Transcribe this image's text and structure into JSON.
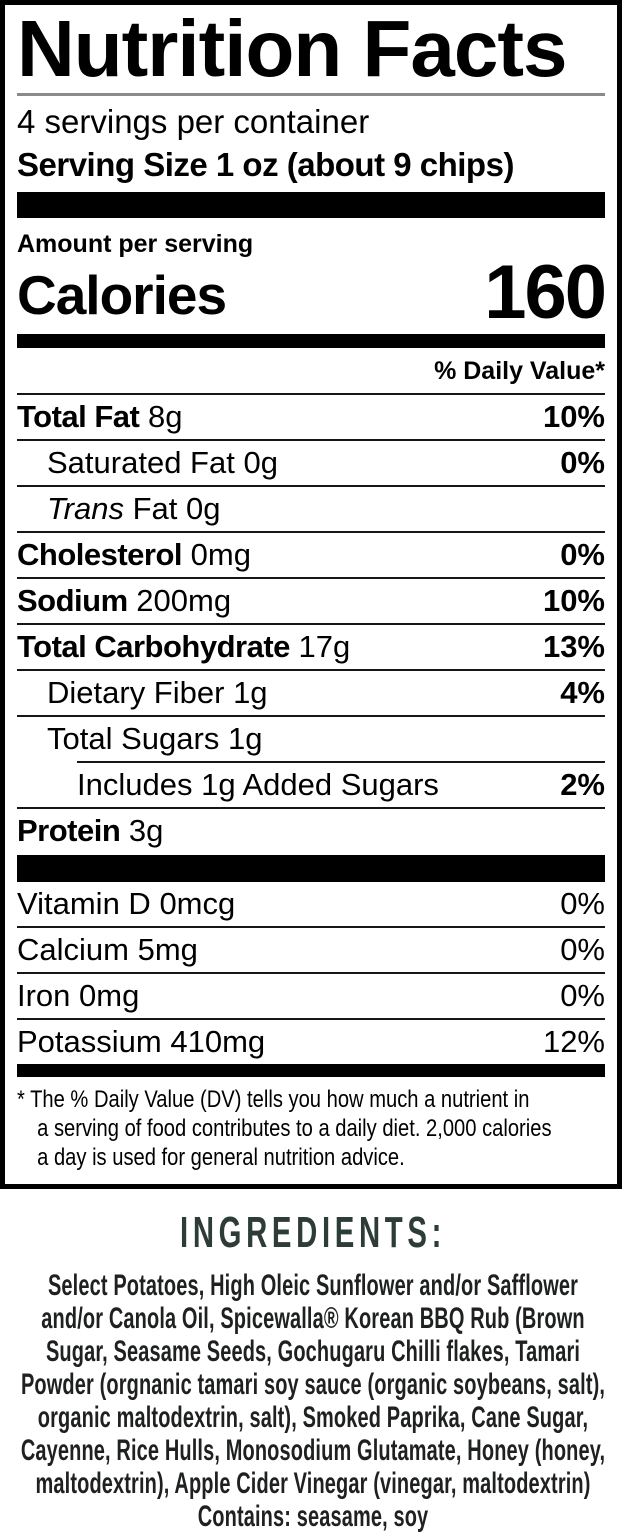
{
  "colors": {
    "label_text": "#000000",
    "bar_fill": "#000000",
    "title_rule_gray": "#8a8a8a",
    "ingredients_heading": "#2e3c38",
    "ingredients_text": "#1f2120"
  },
  "nutrition_label": {
    "title": "Nutrition Facts",
    "servings_per_container": "4 servings per container",
    "serving_size": "Serving Size 1 oz (about 9 chips)",
    "amount_per_serving": "Amount per serving",
    "calories": {
      "label": "Calories",
      "value": "160"
    },
    "daily_value_header": "% Daily Value*",
    "nutrients": [
      {
        "name": "Total Fat",
        "amount": "8g",
        "dv": "10%"
      },
      {
        "name": "Saturated Fat",
        "amount": "0g",
        "dv": "0%"
      },
      {
        "name_italic": "Trans",
        "name_rest": "Fat",
        "amount": "0g"
      },
      {
        "name": "Cholesterol",
        "amount": "0mg",
        "dv": "0%"
      },
      {
        "name": "Sodium",
        "amount": "200mg",
        "dv": "10%"
      },
      {
        "name": "Total Carbohydrate",
        "amount": "17g",
        "dv": "13%"
      },
      {
        "name": "Dietary Fiber",
        "amount": "1g",
        "dv": "4%"
      },
      {
        "name": "Total Sugars",
        "amount": "1g"
      },
      {
        "name": "Includes 1g Added Sugars",
        "dv": "2%"
      },
      {
        "name": "Protein",
        "amount": "3g"
      }
    ],
    "vitamins": [
      {
        "name": "Vitamin D",
        "amount": "0mcg",
        "dv": "0%"
      },
      {
        "name": "Calcium",
        "amount": "5mg",
        "dv": "0%"
      },
      {
        "name": "Iron",
        "amount": "0mg",
        "dv": "0%"
      },
      {
        "name": "Potassium",
        "amount": "410mg",
        "dv": "12%"
      }
    ],
    "footnote_lines": [
      "* The % Daily Value (DV) tells you how much a nutrient in",
      "a serving of food contributes to a daily diet. 2,000 calories",
      "a day is used for general nutrition advice."
    ]
  },
  "ingredients": {
    "heading": "INGREDIENTS:",
    "lines": [
      "Select Potatoes, High Oleic Sunflower and/or Safflower",
      "and/or Canola Oil, Spicewalla® Korean BBQ Rub (Brown",
      "Sugar, Seasame Seeds, Gochugaru Chilli flakes, Tamari",
      "Powder (orgnanic tamari soy sauce (organic soybeans, salt),",
      "organic maltodextrin, salt), Smoked Paprika, Cane Sugar,",
      "Cayenne, Rice Hulls, Monosodium Glutamate, Honey (honey,",
      "maltodextrin), Apple Cider Vinegar (vinegar, maltodextrin)"
    ],
    "contains": "Contains: seasame, soy"
  }
}
